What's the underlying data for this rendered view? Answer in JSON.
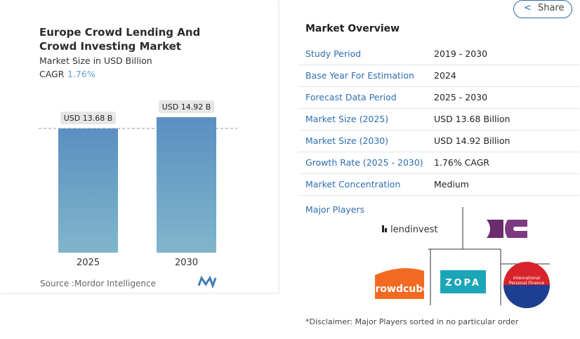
{
  "chart_data": {
    "type": "bar",
    "title": "Europe Crowd Lending And Crowd Investing Market",
    "subtitle": "Market Size in USD Billion",
    "cagr_label": "CAGR",
    "cagr_value": "1.76%",
    "categories": [
      "2025",
      "2030"
    ],
    "values": [
      13.68,
      14.92
    ],
    "value_labels": [
      "USD 13.68 B",
      "USD 14.92 B"
    ],
    "color": "#5f93c3",
    "source_label": "Source :",
    "source": "Mordor Intelligence"
  },
  "share": "Share",
  "overview": {
    "title": "Market Overview",
    "rows": [
      [
        "Study Period",
        "2019 - 2030"
      ],
      [
        "Base Year For Estimation",
        "2024"
      ],
      [
        "Forecast Data Period",
        "2025 - 2030"
      ],
      [
        "Market Size (2025)",
        "USD 13.68 Billion"
      ],
      [
        "Market Size (2030)",
        "USD 14.92 Billion"
      ],
      [
        "Growth Rate (2025 - 2030)",
        "1.76% CAGR"
      ],
      [
        "Market Concentration",
        "Medium"
      ]
    ],
    "major_players_title": "Major Players",
    "players": [
      "lendinvest",
      "crowdcube",
      "ZOPA",
      "International Personal Finance"
    ],
    "disclaimer": "*Disclaimer: Major Players sorted in no particular order"
  }
}
